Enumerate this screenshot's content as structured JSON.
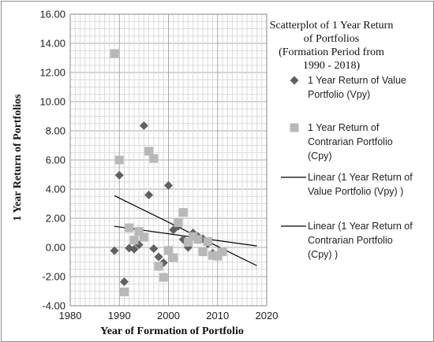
{
  "chart_data": {
    "type": "scatter",
    "title": "Scatterplot of 1 Year Return of Portfolios (Formation Period from 1990 - 2018)",
    "xlabel": "Year of Formation of Portfolio",
    "ylabel": "1 Year Return of Portfolios",
    "xlim": [
      1980,
      2020
    ],
    "ylim": [
      -4,
      16
    ],
    "x_ticks": [
      "1980",
      "1990",
      "2000",
      "2010",
      "2020"
    ],
    "y_ticks": [
      "-4.00",
      "-2.00",
      "0.00",
      "2.00",
      "4.00",
      "6.00",
      "8.00",
      "10.00",
      "12.00",
      "14.00",
      "16.00"
    ],
    "grid": true,
    "legend_position": "right",
    "legend_title_lines": [
      "Scatterplot of 1 Year Return",
      "of Portfolios",
      "(Formation Period from",
      "1990 - 2018)"
    ],
    "series": [
      {
        "name": "1 Year Return of Value Portfolio (Vpy)",
        "legend_lines": [
          "1 Year Return of Value",
          "Portfolio (Vpy)"
        ],
        "marker": "diamond",
        "color": "#606060",
        "x": [
          1989,
          1990,
          1991,
          1992,
          1993,
          1994,
          1995,
          1996,
          1997,
          1998,
          1999,
          2000,
          2001,
          2002,
          2003,
          2004,
          2005,
          2006,
          2007,
          2008,
          2009
        ],
        "y": [
          -0.22,
          4.95,
          -2.35,
          -0.05,
          -0.12,
          0.18,
          8.35,
          3.6,
          -0.08,
          -0.65,
          -1.05,
          4.25,
          1.2,
          1.45,
          0.55,
          0.0,
          1.0,
          0.75,
          0.6,
          0.25,
          -0.4
        ]
      },
      {
        "name": "1 Year Return of Contrarian Portfolio (Cpy)",
        "legend_lines": [
          "1 Year Return of",
          "Contrarian Portfolio",
          "(Cpy)"
        ],
        "marker": "square",
        "color": "#b8b8b8",
        "x": [
          1989,
          1990,
          1991,
          1992,
          1993,
          1994,
          1995,
          1996,
          1997,
          1998,
          1999,
          2000,
          2001,
          2002,
          2003,
          2004,
          2005,
          2006,
          2007,
          2008,
          2009,
          2010,
          2011
        ],
        "y": [
          13.3,
          6.0,
          -3.05,
          1.35,
          0.5,
          1.1,
          0.7,
          6.6,
          6.1,
          -1.3,
          -2.05,
          -0.2,
          -0.7,
          1.7,
          2.4,
          0.35,
          0.75,
          0.55,
          -0.3,
          0.4,
          -0.55,
          -0.6,
          -0.3
        ]
      }
    ],
    "trendlines": [
      {
        "name": "Linear (1 Year Return of Value Portfolio (Vpy) )",
        "legend_lines": [
          "Linear (1 Year Return of",
          "Value Portfolio (Vpy) )"
        ],
        "color": "#000000",
        "x": [
          1989,
          2018
        ],
        "y": [
          3.55,
          -1.25
        ]
      },
      {
        "name": "Linear (1 Year Return of Contrarian Portfolio (Cpy) )",
        "legend_lines": [
          "Linear (1 Year Return of",
          "Contrarian Portfolio",
          "(Cpy) )"
        ],
        "color": "#000000",
        "x": [
          1989,
          2018
        ],
        "y": [
          1.45,
          0.1
        ]
      }
    ]
  }
}
